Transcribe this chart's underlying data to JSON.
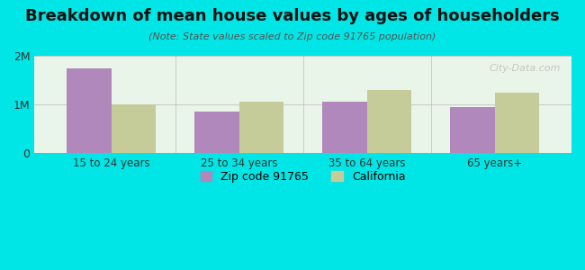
{
  "title": "Breakdown of mean house values by ages of householders",
  "subtitle": "(Note: State values scaled to Zip code 91765 population)",
  "categories": [
    "15 to 24 years",
    "25 to 34 years",
    "35 to 64 years",
    "65 years+"
  ],
  "zip_values": [
    1750000,
    850000,
    1050000,
    950000
  ],
  "ca_values": [
    1000000,
    1050000,
    1300000,
    1250000
  ],
  "zip_color": "#b088bb",
  "ca_color": "#c5cc99",
  "background_outer": "#00e5e5",
  "background_inner": "#e8f5e8",
  "ylim": [
    0,
    2000000
  ],
  "yticks": [
    0,
    1000000,
    2000000
  ],
  "ytick_labels": [
    "0",
    "1M",
    "2M"
  ],
  "legend_zip": "Zip code 91765",
  "legend_ca": "California",
  "bar_width": 0.35,
  "grid_color": "#cccccc",
  "watermark": "City-Data.com"
}
